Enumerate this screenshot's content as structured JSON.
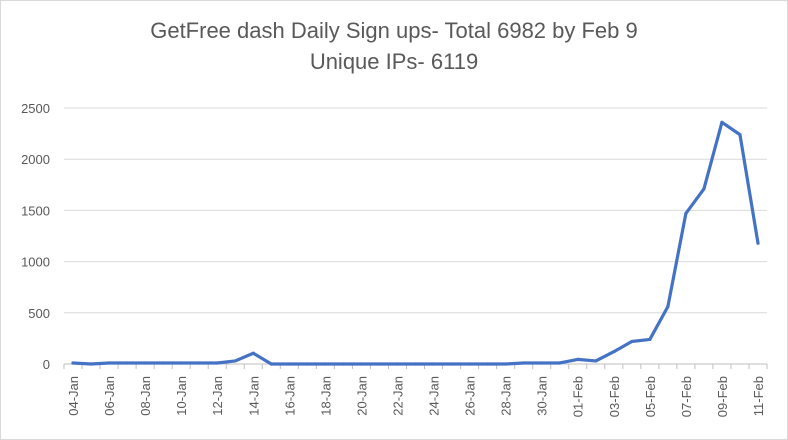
{
  "chart_data": {
    "type": "line",
    "title": [
      "GetFree dash Daily Sign ups- Total 6982 by Feb 9",
      "Unique IPs- 6119"
    ],
    "xlabel": "",
    "ylabel": "",
    "ylim": [
      0,
      2500
    ],
    "yticks": [
      0,
      500,
      1000,
      1500,
      2000,
      2500
    ],
    "grid": "horizontal",
    "legend": "none",
    "color": "#4472C4",
    "x": [
      "04-Jan",
      "05-Jan",
      "06-Jan",
      "07-Jan",
      "08-Jan",
      "09-Jan",
      "10-Jan",
      "11-Jan",
      "12-Jan",
      "13-Jan",
      "14-Jan",
      "15-Jan",
      "16-Jan",
      "17-Jan",
      "18-Jan",
      "19-Jan",
      "20-Jan",
      "21-Jan",
      "22-Jan",
      "23-Jan",
      "24-Jan",
      "25-Jan",
      "26-Jan",
      "27-Jan",
      "28-Jan",
      "29-Jan",
      "30-Jan",
      "31-Jan",
      "01-Feb",
      "02-Feb",
      "03-Feb",
      "04-Feb",
      "05-Feb",
      "06-Feb",
      "07-Feb",
      "08-Feb",
      "09-Feb",
      "10-Feb",
      "11-Feb"
    ],
    "xtick_labels": [
      "04-Jan",
      "06-Jan",
      "08-Jan",
      "10-Jan",
      "12-Jan",
      "14-Jan",
      "16-Jan",
      "18-Jan",
      "20-Jan",
      "22-Jan",
      "24-Jan",
      "26-Jan",
      "28-Jan",
      "30-Jan",
      "01-Feb",
      "03-Feb",
      "05-Feb",
      "07-Feb",
      "09-Feb",
      "11-Feb"
    ],
    "series": [
      {
        "values": [
          10,
          0,
          10,
          10,
          10,
          10,
          10,
          10,
          10,
          30,
          105,
          0,
          0,
          0,
          0,
          0,
          0,
          0,
          0,
          0,
          0,
          0,
          0,
          0,
          0,
          10,
          10,
          10,
          45,
          30,
          120,
          220,
          240,
          560,
          1470,
          1710,
          2360,
          2240,
          1180
        ]
      }
    ]
  }
}
